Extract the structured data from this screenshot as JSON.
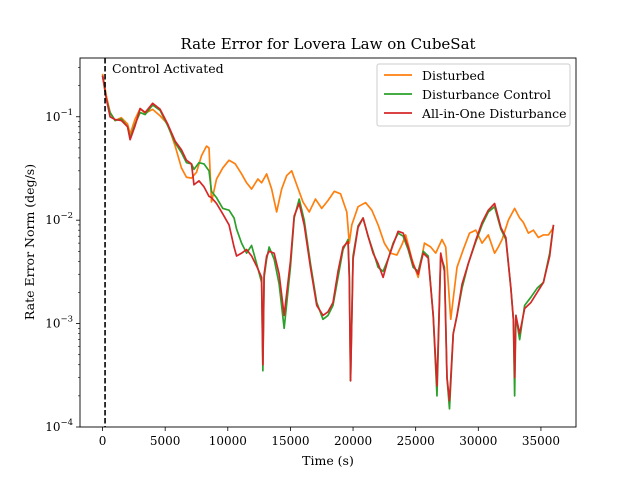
{
  "chart_data": {
    "type": "line",
    "title": "Rate Error for Lovera Law on CubeSat",
    "xlabel": "Time (s)",
    "ylabel": "Rate Error Norm (deg/s)",
    "xlim": [
      -1800,
      37800
    ],
    "ylim": [
      0.0001,
      0.37
    ],
    "yscale": "log",
    "xticks": [
      0,
      5000,
      10000,
      15000,
      20000,
      25000,
      30000,
      35000
    ],
    "xtick_labels": [
      "0",
      "5000",
      "10000",
      "15000",
      "20000",
      "25000",
      "30000",
      "35000"
    ],
    "yticks": [
      0.0001,
      0.001,
      0.01,
      0.1
    ],
    "ytick_labels": [
      {
        "base": "10",
        "exp": "−4"
      },
      {
        "base": "10",
        "exp": "−3"
      },
      {
        "base": "10",
        "exp": "−2"
      },
      {
        "base": "10",
        "exp": "−1"
      }
    ],
    "grid": false,
    "legend_position": "top-right",
    "annotations": [
      {
        "type": "vline",
        "x": 200,
        "style": "dashed",
        "color": "#000000",
        "text": "Control Activated"
      }
    ],
    "series": [
      {
        "name": "Disturbed",
        "color": "#ff7f0e",
        "x": [
          0,
          300,
          600,
          1000,
          1500,
          2000,
          2200,
          2600,
          3000,
          3400,
          4000,
          4600,
          5200,
          5800,
          6300,
          6700,
          7100,
          7500,
          7900,
          8300,
          8500,
          8700,
          9100,
          9600,
          10100,
          10600,
          11100,
          11500,
          11900,
          12400,
          12700,
          13100,
          13500,
          13900,
          14300,
          14700,
          15100,
          15500,
          16000,
          16500,
          17000,
          17500,
          18000,
          18500,
          19000,
          19500,
          19700,
          19900,
          20400,
          21000,
          21500,
          22000,
          22500,
          23000,
          23500,
          23900,
          24200,
          24700,
          25200,
          25700,
          26200,
          26600,
          27100,
          27400,
          27800,
          28300,
          28800,
          29300,
          29800,
          30300,
          30800,
          31300,
          31600,
          31900,
          32400,
          32900,
          33300,
          33600,
          34000,
          34400,
          34800,
          35200,
          35600,
          36000
        ],
        "y": [
          0.26,
          0.16,
          0.11,
          0.092,
          0.098,
          0.085,
          0.068,
          0.095,
          0.12,
          0.108,
          0.118,
          0.102,
          0.085,
          0.052,
          0.032,
          0.026,
          0.0255,
          0.029,
          0.042,
          0.052,
          0.05,
          0.015,
          0.025,
          0.032,
          0.038,
          0.035,
          0.028,
          0.023,
          0.02,
          0.025,
          0.023,
          0.028,
          0.02,
          0.012,
          0.02,
          0.027,
          0.03,
          0.022,
          0.015,
          0.012,
          0.016,
          0.013,
          0.0155,
          0.019,
          0.018,
          0.012,
          0.006,
          0.009,
          0.0135,
          0.0148,
          0.0125,
          0.009,
          0.006,
          0.0048,
          0.0046,
          0.0058,
          0.0072,
          0.0042,
          0.0028,
          0.006,
          0.0055,
          0.0048,
          0.0065,
          0.0055,
          0.0011,
          0.0035,
          0.0052,
          0.0075,
          0.008,
          0.006,
          0.0072,
          0.0048,
          0.0055,
          0.0065,
          0.01,
          0.013,
          0.0105,
          0.0095,
          0.0075,
          0.008,
          0.0068,
          0.0072,
          0.0072,
          0.0085
        ]
      },
      {
        "name": "Disturbance Control",
        "color": "#2ca02c",
        "x": [
          0,
          300,
          600,
          1000,
          1500,
          2000,
          2200,
          2600,
          3000,
          3400,
          4000,
          4600,
          5200,
          5800,
          6300,
          6700,
          7100,
          7300,
          7700,
          8100,
          8500,
          8700,
          9100,
          9600,
          10100,
          10500,
          10700,
          11100,
          11500,
          11900,
          12300,
          12700,
          12800,
          12900,
          13100,
          13300,
          13700,
          14100,
          14500,
          15000,
          15300,
          15700,
          16100,
          16600,
          17100,
          17600,
          18000,
          18400,
          18800,
          19200,
          19600,
          19700,
          19800,
          20000,
          20400,
          20800,
          21200,
          21600,
          22000,
          22400,
          22800,
          23200,
          23600,
          24000,
          24400,
          24800,
          25200,
          25600,
          26000,
          26400,
          26700,
          27000,
          27300,
          27500,
          27700,
          28000,
          28300,
          28700,
          29200,
          29800,
          30300,
          30800,
          31300,
          31800,
          32200,
          32600,
          32800,
          32900,
          33000,
          33300,
          33700,
          34200,
          34700,
          35200,
          35700,
          36000
        ],
        "y": [
          0.25,
          0.15,
          0.11,
          0.092,
          0.095,
          0.08,
          0.062,
          0.085,
          0.11,
          0.105,
          0.13,
          0.115,
          0.082,
          0.056,
          0.045,
          0.036,
          0.035,
          0.031,
          0.036,
          0.035,
          0.03,
          0.019,
          0.0165,
          0.013,
          0.0125,
          0.0105,
          0.0082,
          0.006,
          0.0048,
          0.0057,
          0.0038,
          0.0025,
          0.00035,
          0.0028,
          0.0042,
          0.0055,
          0.0042,
          0.0024,
          0.0009,
          0.0035,
          0.0105,
          0.016,
          0.01,
          0.0038,
          0.0016,
          0.0011,
          0.0012,
          0.0015,
          0.0028,
          0.0052,
          0.0065,
          0.003,
          0.00028,
          0.0045,
          0.0088,
          0.0105,
          0.007,
          0.005,
          0.0035,
          0.0032,
          0.0042,
          0.006,
          0.0075,
          0.007,
          0.0052,
          0.0035,
          0.0032,
          0.005,
          0.0045,
          0.0012,
          0.0002,
          0.0045,
          0.0035,
          0.0003,
          0.00015,
          0.0008,
          0.0012,
          0.0022,
          0.0038,
          0.0062,
          0.009,
          0.012,
          0.0135,
          0.0082,
          0.0065,
          0.0022,
          0.0011,
          0.0002,
          0.0012,
          0.0007,
          0.0015,
          0.0018,
          0.0022,
          0.0025,
          0.0048,
          0.009
        ]
      },
      {
        "name": "All-in-One Disturbance",
        "color": "#d62728",
        "x": [
          0,
          300,
          600,
          1000,
          1500,
          2000,
          2200,
          2600,
          3000,
          3400,
          4000,
          4600,
          5200,
          5800,
          6300,
          6700,
          7100,
          7300,
          7700,
          8100,
          8500,
          8700,
          9100,
          9600,
          10100,
          10500,
          10700,
          11100,
          11500,
          11900,
          12300,
          12700,
          12800,
          12900,
          13100,
          13300,
          13700,
          14100,
          14500,
          15000,
          15300,
          15700,
          16100,
          16600,
          17100,
          17600,
          18000,
          18400,
          18800,
          19200,
          19600,
          19700,
          19800,
          20000,
          20400,
          20800,
          21200,
          21600,
          22000,
          22400,
          22800,
          23200,
          23600,
          24000,
          24400,
          24800,
          25200,
          25600,
          26000,
          26400,
          26700,
          27000,
          27300,
          27500,
          27700,
          28000,
          28300,
          28700,
          29200,
          29800,
          30300,
          30800,
          31300,
          31800,
          32200,
          32600,
          32800,
          32900,
          33000,
          33300,
          33700,
          34200,
          34700,
          35200,
          35700,
          36000
        ],
        "y": [
          0.25,
          0.15,
          0.1,
          0.094,
          0.092,
          0.08,
          0.06,
          0.082,
          0.12,
          0.11,
          0.135,
          0.118,
          0.085,
          0.058,
          0.048,
          0.038,
          0.035,
          0.022,
          0.024,
          0.021,
          0.017,
          0.0165,
          0.0145,
          0.0115,
          0.009,
          0.0055,
          0.0045,
          0.0048,
          0.0052,
          0.0045,
          0.0036,
          0.0028,
          0.0004,
          0.003,
          0.0045,
          0.005,
          0.0048,
          0.003,
          0.0012,
          0.004,
          0.011,
          0.0145,
          0.009,
          0.0035,
          0.0015,
          0.0012,
          0.0013,
          0.0016,
          0.0032,
          0.0055,
          0.0062,
          0.0028,
          0.00028,
          0.0042,
          0.0085,
          0.0105,
          0.007,
          0.0048,
          0.0038,
          0.0028,
          0.0042,
          0.0058,
          0.0078,
          0.0075,
          0.0055,
          0.0037,
          0.003,
          0.0048,
          0.0043,
          0.0012,
          0.00025,
          0.0048,
          0.0032,
          0.0003,
          0.00018,
          0.0008,
          0.0012,
          0.0024,
          0.0038,
          0.0064,
          0.0095,
          0.0125,
          0.0145,
          0.0085,
          0.0068,
          0.0022,
          0.0011,
          0.0003,
          0.0012,
          0.0008,
          0.0014,
          0.0016,
          0.002,
          0.0025,
          0.0045,
          0.009
        ]
      }
    ]
  }
}
